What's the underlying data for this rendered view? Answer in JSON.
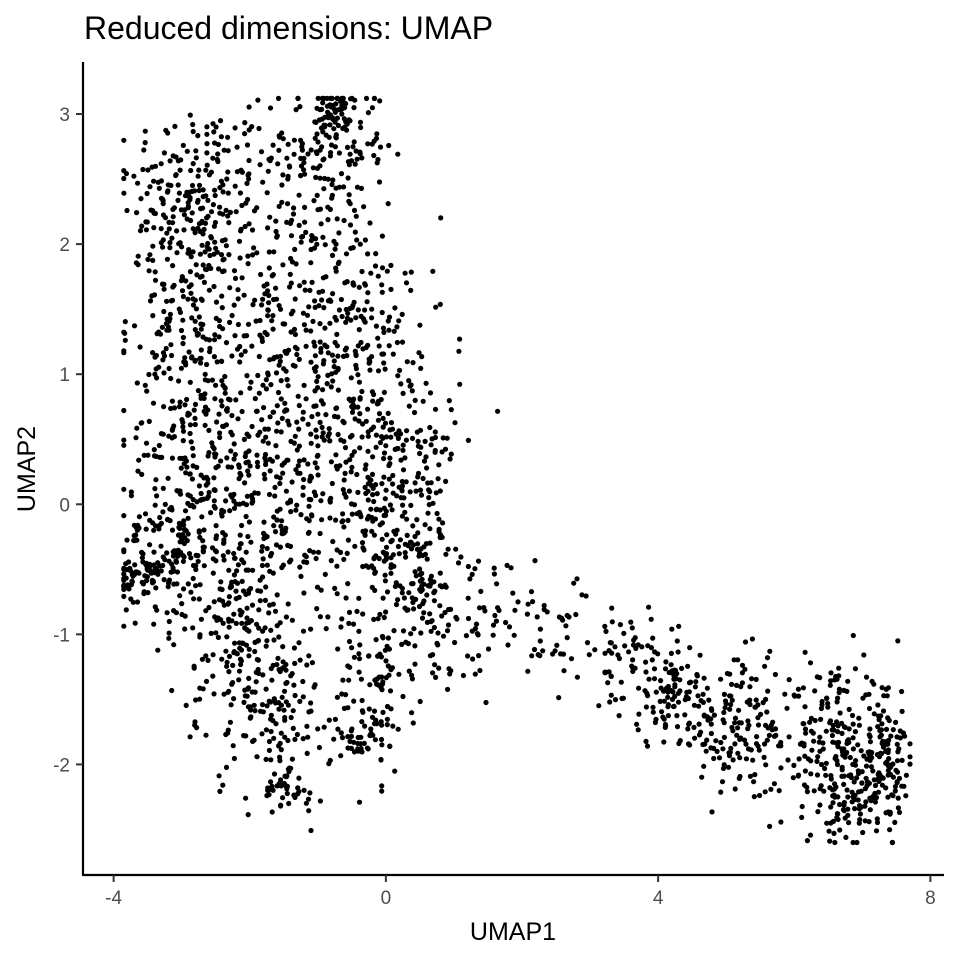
{
  "chart_data": {
    "type": "scatter",
    "title": "Reduced dimensions: UMAP",
    "xlabel": "UMAP1",
    "ylabel": "UMAP2",
    "xlim": [
      -4.45,
      8.2
    ],
    "ylim": [
      -2.85,
      3.4
    ],
    "x_ticks": [
      -4,
      0,
      4,
      8
    ],
    "x_tick_labels": [
      "-4",
      "0",
      "4",
      "8"
    ],
    "y_ticks": [
      -2,
      -1,
      0,
      1,
      2,
      3
    ],
    "y_tick_labels": [
      "-2",
      "-1",
      "0",
      "1",
      "2",
      "3"
    ],
    "grid": false,
    "legend": "none",
    "point_color": "#000000",
    "point_count": 3200,
    "clusters": [
      {
        "center": [
          -2.8,
          2.4
        ],
        "spread": [
          0.55,
          0.35
        ],
        "weight": 190
      },
      {
        "center": [
          -0.9,
          2.75
        ],
        "spread": [
          0.45,
          0.3
        ],
        "weight": 150
      },
      {
        "center": [
          -0.75,
          3.0
        ],
        "spread": [
          0.12,
          0.06
        ],
        "weight": 40
      },
      {
        "center": [
          -3.0,
          1.5
        ],
        "spread": [
          0.4,
          0.45
        ],
        "weight": 120
      },
      {
        "center": [
          -1.6,
          1.6
        ],
        "spread": [
          0.8,
          0.45
        ],
        "weight": 230
      },
      {
        "center": [
          -0.5,
          1.4
        ],
        "spread": [
          0.45,
          0.55
        ],
        "weight": 130
      },
      {
        "center": [
          -2.8,
          0.6
        ],
        "spread": [
          0.45,
          0.5
        ],
        "weight": 140
      },
      {
        "center": [
          -1.4,
          0.6
        ],
        "spread": [
          0.7,
          0.45
        ],
        "weight": 210
      },
      {
        "center": [
          0.2,
          0.5
        ],
        "spread": [
          0.45,
          0.5
        ],
        "weight": 140
      },
      {
        "center": [
          -3.2,
          -0.3
        ],
        "spread": [
          0.35,
          0.35
        ],
        "weight": 120
      },
      {
        "center": [
          -2.0,
          -0.2
        ],
        "spread": [
          0.7,
          0.4
        ],
        "weight": 200
      },
      {
        "center": [
          0.0,
          -0.1
        ],
        "spread": [
          0.5,
          0.5
        ],
        "weight": 200
      },
      {
        "center": [
          -3.6,
          -0.55
        ],
        "spread": [
          0.18,
          0.1
        ],
        "weight": 70
      },
      {
        "center": [
          -2.1,
          -1.1
        ],
        "spread": [
          0.45,
          0.4
        ],
        "weight": 180
      },
      {
        "center": [
          -1.5,
          -1.6
        ],
        "spread": [
          0.35,
          0.35
        ],
        "weight": 100
      },
      {
        "center": [
          -1.5,
          -2.2
        ],
        "spread": [
          0.14,
          0.08
        ],
        "weight": 30
      },
      {
        "center": [
          -0.2,
          -1.4
        ],
        "spread": [
          0.3,
          0.35
        ],
        "weight": 100
      },
      {
        "center": [
          -0.4,
          -1.85
        ],
        "spread": [
          0.2,
          0.08
        ],
        "weight": 25
      },
      {
        "center": [
          0.6,
          -0.7
        ],
        "spread": [
          0.3,
          0.35
        ],
        "weight": 70
      },
      {
        "center": [
          1.3,
          -0.9
        ],
        "spread": [
          0.45,
          0.25
        ],
        "weight": 60
      },
      {
        "center": [
          2.5,
          -1.0
        ],
        "spread": [
          0.5,
          0.2
        ],
        "weight": 35
      },
      {
        "center": [
          3.5,
          -1.2
        ],
        "spread": [
          0.35,
          0.2
        ],
        "weight": 60
      },
      {
        "center": [
          4.2,
          -1.45
        ],
        "spread": [
          0.35,
          0.2
        ],
        "weight": 90
      },
      {
        "center": [
          5.2,
          -1.7
        ],
        "spread": [
          0.5,
          0.25
        ],
        "weight": 160
      },
      {
        "center": [
          6.7,
          -1.9
        ],
        "spread": [
          0.45,
          0.3
        ],
        "weight": 220
      },
      {
        "center": [
          7.4,
          -2.0
        ],
        "spread": [
          0.2,
          0.22
        ],
        "weight": 80
      },
      {
        "center": [
          6.8,
          -2.3
        ],
        "spread": [
          0.3,
          0.15
        ],
        "weight": 60
      }
    ]
  }
}
